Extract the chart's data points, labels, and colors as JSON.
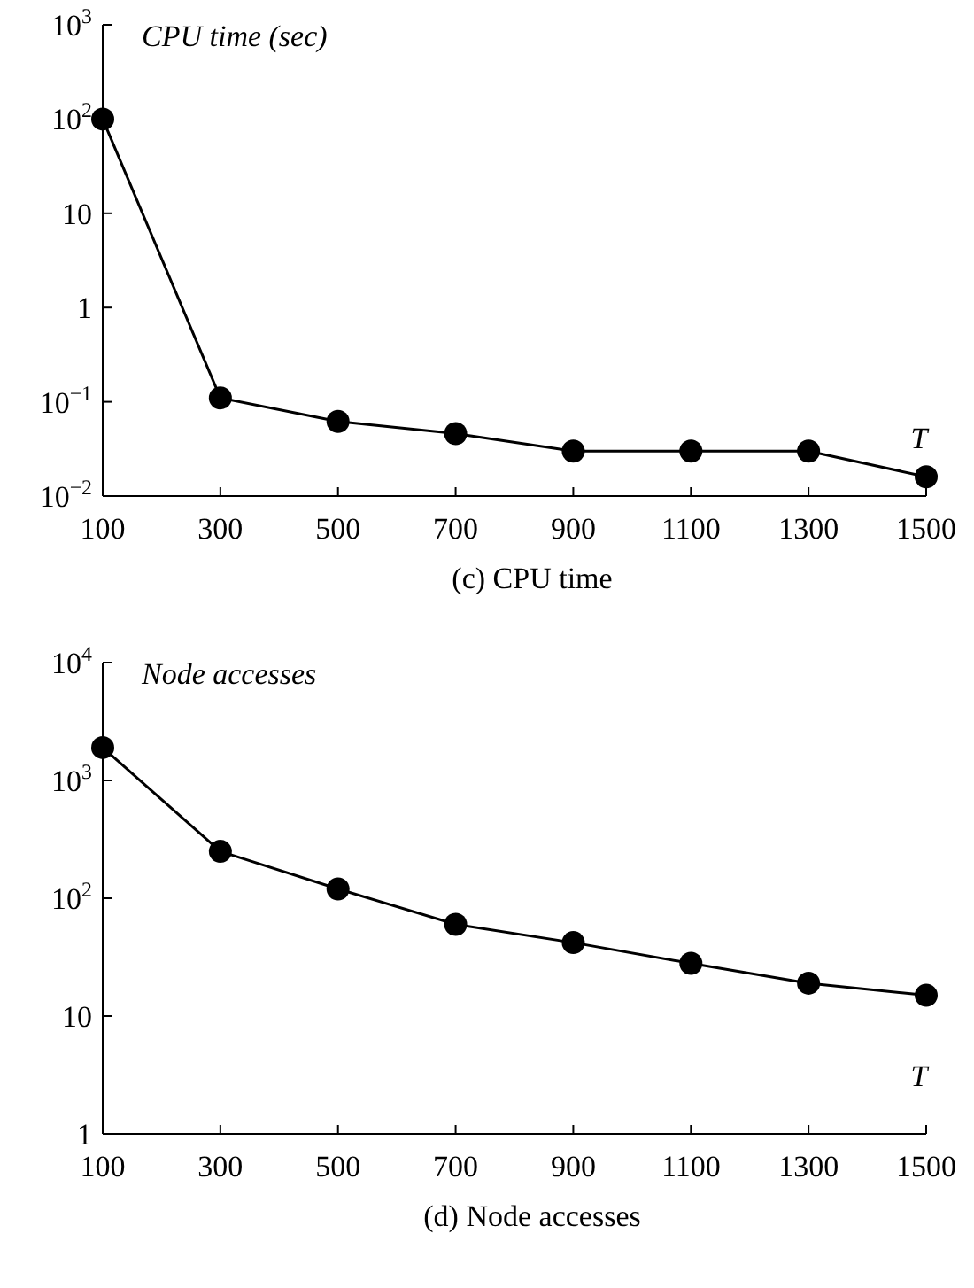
{
  "chart_data": [
    {
      "type": "line",
      "title": "(c) CPU time",
      "ylabel": "CPU time (sec)",
      "xlabel": "T",
      "x": [
        100,
        300,
        500,
        700,
        900,
        1100,
        1300,
        1500
      ],
      "series": [
        {
          "color": "#000000",
          "values": [
            100,
            0.11,
            0.062,
            0.046,
            0.03,
            0.03,
            0.03,
            0.016
          ]
        }
      ],
      "log": "y",
      "xlim": [
        100,
        1500
      ],
      "xticks": [
        100,
        300,
        500,
        700,
        900,
        1100,
        1300,
        1500
      ],
      "ylim": [
        0.01,
        1000
      ],
      "yticks": [
        {
          "value": 0.01,
          "label": "10$^{−2}$"
        },
        {
          "value": 0.1,
          "label": "10$^{−1}$"
        },
        {
          "value": 1,
          "label": "1"
        },
        {
          "value": 10,
          "label": "10"
        },
        {
          "value": 100,
          "label": "10$^{2}$"
        },
        {
          "value": 1000,
          "label": "10$^{3}$"
        }
      ],
      "marker": "circle",
      "line_style": "solid",
      "grid": false
    },
    {
      "type": "line",
      "title": "(d) Node accesses",
      "ylabel": "Node accesses",
      "xlabel": "T",
      "x": [
        100,
        300,
        500,
        700,
        900,
        1100,
        1300,
        1500
      ],
      "series": [
        {
          "color": "#000000",
          "values": [
            1900,
            250,
            120,
            60,
            42,
            28,
            19,
            15
          ]
        }
      ],
      "log": "y",
      "xlim": [
        100,
        1500
      ],
      "xticks": [
        100,
        300,
        500,
        700,
        900,
        1100,
        1300,
        1500
      ],
      "ylim": [
        1,
        10000
      ],
      "yticks": [
        {
          "value": 1,
          "label": "1"
        },
        {
          "value": 10,
          "label": "10"
        },
        {
          "value": 100,
          "label": "10$^{2}$"
        },
        {
          "value": 1000,
          "label": "10$^{3}$"
        },
        {
          "value": 10000,
          "label": "10$^{4}$"
        }
      ],
      "marker": "circle",
      "line_style": "solid",
      "grid": false
    }
  ]
}
